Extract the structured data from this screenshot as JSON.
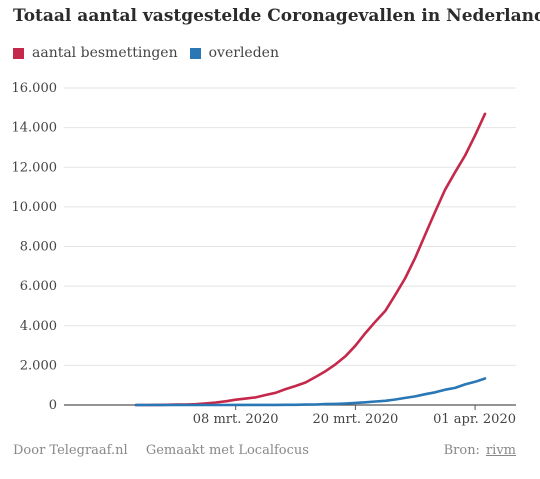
{
  "header": {
    "title": "Totaal aantal vastgestelde Coronagevallen in Nederland"
  },
  "footer": {
    "byline": "Door Telegraaf.nl",
    "made_with": "Gemaakt met Localfocus",
    "source_label": "Bron:",
    "source": "rivm"
  },
  "chart_data": {
    "type": "line",
    "title": "Totaal aantal vastgestelde Coronagevallen in Nederland",
    "xlabel": "",
    "ylabel": "",
    "x": [
      "2020-02-27",
      "2020-02-28",
      "2020-02-29",
      "2020-03-01",
      "2020-03-02",
      "2020-03-03",
      "2020-03-04",
      "2020-03-05",
      "2020-03-06",
      "2020-03-07",
      "2020-03-08",
      "2020-03-09",
      "2020-03-10",
      "2020-03-11",
      "2020-03-12",
      "2020-03-13",
      "2020-03-14",
      "2020-03-15",
      "2020-03-16",
      "2020-03-17",
      "2020-03-18",
      "2020-03-19",
      "2020-03-20",
      "2020-03-21",
      "2020-03-22",
      "2020-03-23",
      "2020-03-24",
      "2020-03-25",
      "2020-03-26",
      "2020-03-27",
      "2020-03-28",
      "2020-03-29",
      "2020-03-30",
      "2020-03-31",
      "2020-04-01",
      "2020-04-02"
    ],
    "series": [
      {
        "name": "aantal besmettingen",
        "color": "#c4284a",
        "values": [
          1,
          2,
          7,
          10,
          18,
          24,
          38,
          82,
          128,
          188,
          265,
          321,
          382,
          503,
          614,
          804,
          959,
          1135,
          1413,
          1705,
          2051,
          2460,
          2994,
          3631,
          4204,
          4749,
          5560,
          6412,
          7431,
          8603,
          9762,
          10866,
          11750,
          12595,
          13614,
          14697
        ]
      },
      {
        "name": "overleden",
        "color": "#2a77b5",
        "values": [
          0,
          0,
          0,
          0,
          0,
          0,
          0,
          0,
          1,
          1,
          3,
          4,
          4,
          5,
          5,
          10,
          12,
          20,
          24,
          43,
          58,
          76,
          106,
          136,
          179,
          213,
          276,
          356,
          434,
          546,
          639,
          771,
          864,
          1039,
          1173,
          1339
        ]
      }
    ],
    "x_ticks": [
      {
        "date": "2020-03-08",
        "label": "08 mrt. 2020"
      },
      {
        "date": "2020-03-20",
        "label": "20 mrt. 2020"
      },
      {
        "date": "2020-04-01",
        "label": "01 apr. 2020"
      }
    ],
    "y_ticks": [
      {
        "value": 0,
        "label": "0"
      },
      {
        "value": 2000,
        "label": "2.000"
      },
      {
        "value": 4000,
        "label": "4.000"
      },
      {
        "value": 6000,
        "label": "6.000"
      },
      {
        "value": 8000,
        "label": "8.000"
      },
      {
        "value": 10000,
        "label": "10.000"
      },
      {
        "value": 12000,
        "label": "12.000"
      },
      {
        "value": 14000,
        "label": "14.000"
      },
      {
        "value": 16000,
        "label": "16.000"
      }
    ],
    "ylim": [
      0,
      16000
    ],
    "xlim": [
      "2020-02-24",
      "2020-04-04"
    ],
    "grid": true,
    "legend": "top-left"
  }
}
